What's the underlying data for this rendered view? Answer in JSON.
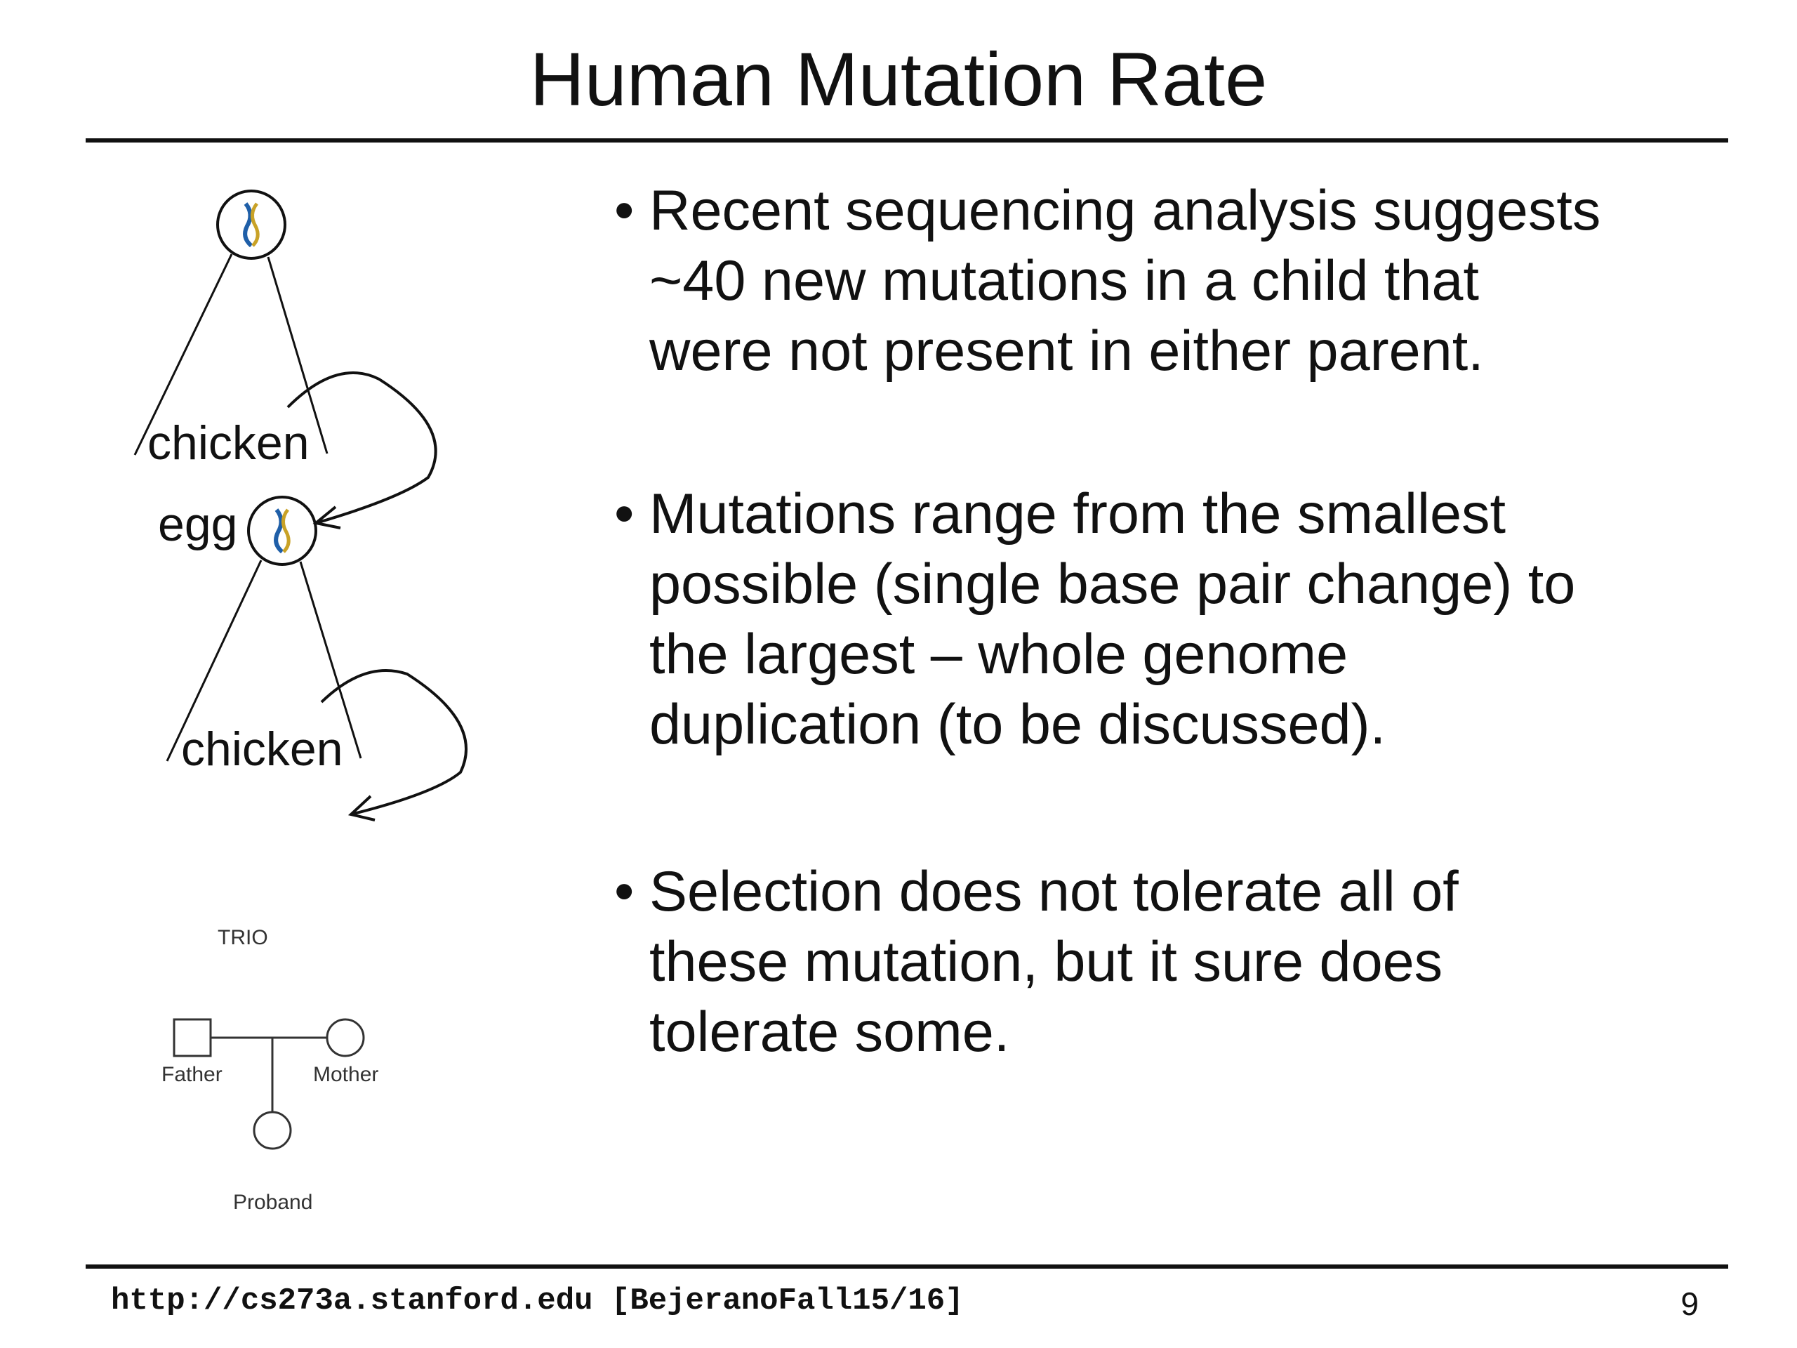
{
  "slide": {
    "title": "Human Mutation Rate",
    "bullets": [
      [
        "Recent sequencing analysis suggests",
        "~40 new mutations in a child that",
        "were not present in either parent."
      ],
      [
        "Mutations range from the smallest",
        "possible (single base pair change) to",
        "the largest – whole genome",
        "duplication (to be discussed)."
      ],
      [
        "Selection does not tolerate all of",
        "these mutation, but it sure does",
        "tolerate some."
      ]
    ],
    "bullet_symbol": "•"
  },
  "figure": {
    "labels": {
      "chicken_top": "chicken",
      "egg": "egg",
      "chicken_bottom": "chicken"
    },
    "trio": {
      "title": "TRIO",
      "father": "Father",
      "mother": "Mother",
      "proband": "Proband"
    }
  },
  "footer": {
    "url": "http://cs273a.stanford.edu [BejeranoFall15/16]",
    "page": "9"
  }
}
